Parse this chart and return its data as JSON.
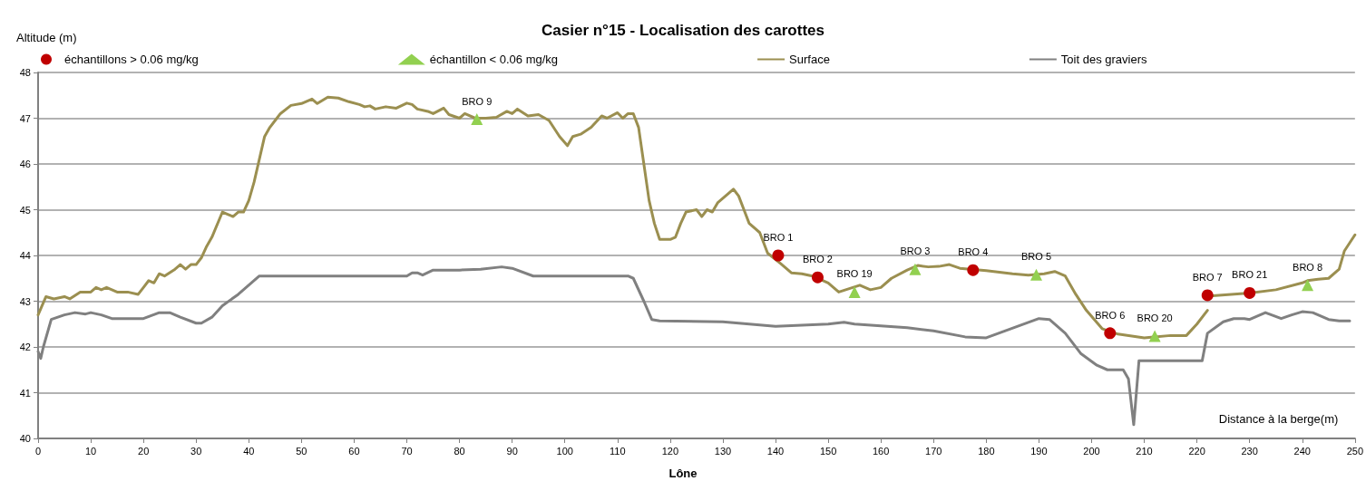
{
  "chart_data": {
    "type": "line",
    "title": "Casier n°15 - Localisation des carottes",
    "xlabel": "Distance à la berge(m)",
    "ylabel": "Altitude (m)",
    "annotations": [
      "Lône"
    ],
    "xlim": [
      0,
      250
    ],
    "xticks": [
      0,
      10,
      20,
      30,
      40,
      50,
      60,
      70,
      80,
      90,
      100,
      110,
      120,
      130,
      140,
      150,
      160,
      170,
      180,
      190,
      200,
      210,
      220,
      230,
      240,
      250
    ],
    "ylim": [
      40,
      48
    ],
    "yticks": [
      40,
      41,
      42,
      43,
      44,
      45,
      46,
      47,
      48
    ],
    "grid": "y",
    "legend": "top",
    "marker": "none",
    "line_style": "solid",
    "series": [
      {
        "name": "échantillons > 0.06 mg/kg",
        "type": "scatter",
        "marker": "circle",
        "color": "#c00000",
        "x": [
          140.5,
          148,
          177.5,
          203.5,
          222,
          230
        ],
        "values": [
          44.0,
          43.52,
          43.68,
          42.3,
          43.13,
          43.18
        ],
        "value_labels": [
          "BRO 1",
          "BRO 2",
          "BRO 4",
          "BRO 6",
          "BRO 7",
          "BRO 21"
        ]
      },
      {
        "name": "échantillon < 0.06 mg/kg",
        "type": "scatter",
        "marker": "triangle",
        "color": "#92d050",
        "x": [
          83.3,
          155,
          166.5,
          189.5,
          212,
          241
        ],
        "values": [
          46.98,
          43.2,
          43.7,
          43.58,
          42.24,
          43.35
        ],
        "value_labels": [
          "BRO 9",
          "BRO 19",
          "BRO 3",
          "BRO 5",
          "BRO 20",
          "BRO 8"
        ]
      },
      {
        "name": "Surface",
        "color": "#9b8f50",
        "x": [
          0,
          1.5,
          3,
          5,
          6,
          8,
          10,
          11,
          12,
          13,
          15,
          17,
          19,
          20,
          21,
          22,
          23,
          24,
          26,
          27,
          28,
          29,
          30,
          31,
          32,
          33,
          35,
          36,
          37,
          38,
          39,
          40,
          41,
          42,
          43,
          44,
          45,
          46,
          48,
          50,
          52,
          53,
          55,
          57,
          59,
          61,
          62,
          63,
          64,
          66,
          68,
          70,
          71,
          72,
          74,
          75,
          77,
          78,
          80,
          81,
          83,
          85,
          87,
          89,
          90,
          91,
          93,
          95,
          97,
          99,
          100.5,
          101.5,
          103,
          105,
          107,
          108,
          110,
          111,
          112,
          113,
          114,
          115,
          116,
          117,
          118,
          120,
          121,
          122,
          123,
          125,
          126,
          127,
          128,
          129,
          131,
          132,
          133,
          134,
          135,
          137,
          138.5,
          141,
          143,
          145,
          147,
          150,
          152,
          156,
          158,
          160,
          162,
          165,
          167,
          169,
          171,
          173,
          175,
          177,
          180,
          185,
          188,
          191,
          193,
          195,
          197,
          199,
          202,
          205,
          210,
          215,
          218,
          220,
          222,
          222.5,
          223,
          230,
          235,
          240,
          241,
          243,
          245,
          247,
          248,
          250
        ],
        "values": [
          42.7,
          43.1,
          43.05,
          43.1,
          43.05,
          43.2,
          43.2,
          43.3,
          43.25,
          43.3,
          43.2,
          43.2,
          43.15,
          43.3,
          43.45,
          43.4,
          43.6,
          43.55,
          43.7,
          43.8,
          43.7,
          43.8,
          43.8,
          43.95,
          44.2,
          44.4,
          44.95,
          44.9,
          44.85,
          44.95,
          44.95,
          45.2,
          45.6,
          46.1,
          46.6,
          46.8,
          46.95,
          47.1,
          47.28,
          47.32,
          47.42,
          47.32,
          47.46,
          47.44,
          47.36,
          47.3,
          47.25,
          47.27,
          47.2,
          47.25,
          47.22,
          47.33,
          47.3,
          47.2,
          47.15,
          47.1,
          47.22,
          47.08,
          47.0,
          47.1,
          47.0,
          47.0,
          47.02,
          47.15,
          47.1,
          47.2,
          47.05,
          47.08,
          46.95,
          46.6,
          46.4,
          46.6,
          46.65,
          46.8,
          47.05,
          47.0,
          47.12,
          47.0,
          47.1,
          47.1,
          46.8,
          46.0,
          45.2,
          44.7,
          44.35,
          44.35,
          44.4,
          44.7,
          44.95,
          45.0,
          44.85,
          45.0,
          44.95,
          45.15,
          45.35,
          45.45,
          45.3,
          45.0,
          44.7,
          44.5,
          44.05,
          43.82,
          43.62,
          43.6,
          43.55,
          43.4,
          43.2,
          43.35,
          43.25,
          43.3,
          43.5,
          43.68,
          43.78,
          43.75,
          43.76,
          43.8,
          43.72,
          43.7,
          43.67,
          43.6,
          43.57,
          43.6,
          43.65,
          43.55,
          43.15,
          42.8,
          42.4,
          42.28,
          42.2,
          42.25,
          42.25,
          42.5,
          42.8,
          null,
          43.12,
          43.18,
          43.25,
          43.4,
          43.45,
          43.48,
          43.5,
          43.7,
          44.1,
          44.45
        ]
      },
      {
        "name": "Toit des graviers",
        "color": "#808080",
        "x": [
          0,
          0.5,
          1,
          2.5,
          5,
          7,
          9,
          10,
          12,
          14,
          20,
          23,
          25,
          27,
          30,
          31,
          33,
          35,
          38,
          42,
          70,
          71,
          72,
          73,
          75,
          80,
          84,
          88,
          90,
          94,
          112,
          113,
          115,
          116.5,
          118,
          130,
          135,
          140,
          150,
          153,
          155,
          165,
          170,
          176,
          180,
          190,
          192,
          195,
          198,
          201,
          203,
          206,
          207,
          208,
          209,
          221,
          222,
          225,
          227,
          229,
          230,
          233,
          236,
          238,
          240,
          242,
          245,
          247,
          249
        ],
        "values": [
          41.9,
          41.75,
          42.0,
          42.6,
          42.7,
          42.75,
          42.72,
          42.75,
          42.7,
          42.62,
          42.62,
          42.75,
          42.75,
          42.65,
          42.52,
          42.52,
          42.65,
          42.9,
          43.15,
          43.55,
          43.55,
          43.62,
          43.62,
          43.57,
          43.68,
          43.68,
          43.7,
          43.75,
          43.72,
          43.55,
          43.55,
          43.5,
          43.0,
          42.6,
          42.57,
          42.55,
          42.5,
          42.45,
          42.5,
          42.54,
          42.5,
          42.42,
          42.35,
          42.22,
          42.2,
          42.62,
          42.6,
          42.3,
          41.85,
          41.6,
          41.5,
          41.5,
          41.3,
          40.3,
          41.7,
          41.7,
          42.3,
          42.55,
          42.62,
          42.62,
          42.6,
          42.75,
          42.62,
          42.7,
          42.77,
          42.75,
          42.6,
          42.57,
          42.57
        ]
      }
    ]
  }
}
